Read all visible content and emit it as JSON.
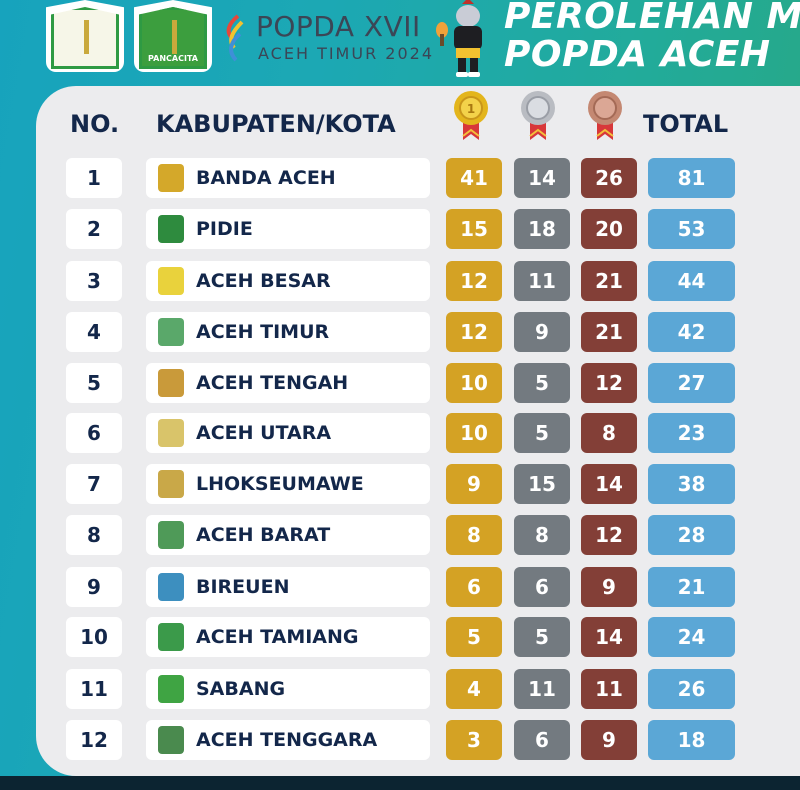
{
  "header": {
    "crest_left_label": "",
    "crest_right_label": "PANCACITA",
    "event_name": "POPDA XVII",
    "event_sub": "ACEH TIMUR 2024",
    "title_line1": "PEROLEHAN M",
    "title_line2": "POPDA ACEH"
  },
  "table": {
    "columns": {
      "no": "NO.",
      "region": "KABUPATEN/KOTA",
      "gold_icon": "gold-medal-icon",
      "silver_icon": "silver-medal-icon",
      "bronze_icon": "bronze-medal-icon",
      "total": "TOTAL"
    },
    "rows": [
      {
        "no": "1",
        "name": "BANDA ACEH",
        "gold": "41",
        "silver": "14",
        "bronze": "26",
        "total": "81",
        "logo": "#d4a82a"
      },
      {
        "no": "2",
        "name": "PIDIE",
        "gold": "15",
        "silver": "18",
        "bronze": "20",
        "total": "53",
        "logo": "#2e8b3e"
      },
      {
        "no": "3",
        "name": "ACEH BESAR",
        "gold": "12",
        "silver": "11",
        "bronze": "21",
        "total": "44",
        "logo": "#e9d23c"
      },
      {
        "no": "4",
        "name": "ACEH TIMUR",
        "gold": "12",
        "silver": "9",
        "bronze": "21",
        "total": "42",
        "logo": "#5aa86a"
      },
      {
        "no": "5",
        "name": "ACEH TENGAH",
        "gold": "10",
        "silver": "5",
        "bronze": "12",
        "total": "27",
        "logo": "#c99a3a"
      },
      {
        "no": "6",
        "name": "ACEH UTARA",
        "gold": "10",
        "silver": "5",
        "bronze": "8",
        "total": "23",
        "logo": "#d9c46a"
      },
      {
        "no": "7",
        "name": "LHOKSEUMAWE",
        "gold": "9",
        "silver": "15",
        "bronze": "14",
        "total": "38",
        "logo": "#c9a848"
      },
      {
        "no": "8",
        "name": "ACEH BARAT",
        "gold": "8",
        "silver": "8",
        "bronze": "12",
        "total": "28",
        "logo": "#4f9a58"
      },
      {
        "no": "9",
        "name": "BIREUEN",
        "gold": "6",
        "silver": "6",
        "bronze": "9",
        "total": "21",
        "logo": "#3d8fbf"
      },
      {
        "no": "10",
        "name": "ACEH TAMIANG",
        "gold": "5",
        "silver": "5",
        "bronze": "14",
        "total": "24",
        "logo": "#3b9a4a"
      },
      {
        "no": "11",
        "name": "SABANG",
        "gold": "4",
        "silver": "11",
        "bronze": "11",
        "total": "26",
        "logo": "#3fa443"
      },
      {
        "no": "12",
        "name": "ACEH TENGGARA",
        "gold": "3",
        "silver": "6",
        "bronze": "9",
        "total": "18",
        "logo": "#4a8a4e"
      }
    ]
  },
  "colors": {
    "gold": "#d4a224",
    "silver": "#737a80",
    "bronze": "#833f37",
    "total": "#5ba7d6",
    "heading": "#13274a"
  }
}
